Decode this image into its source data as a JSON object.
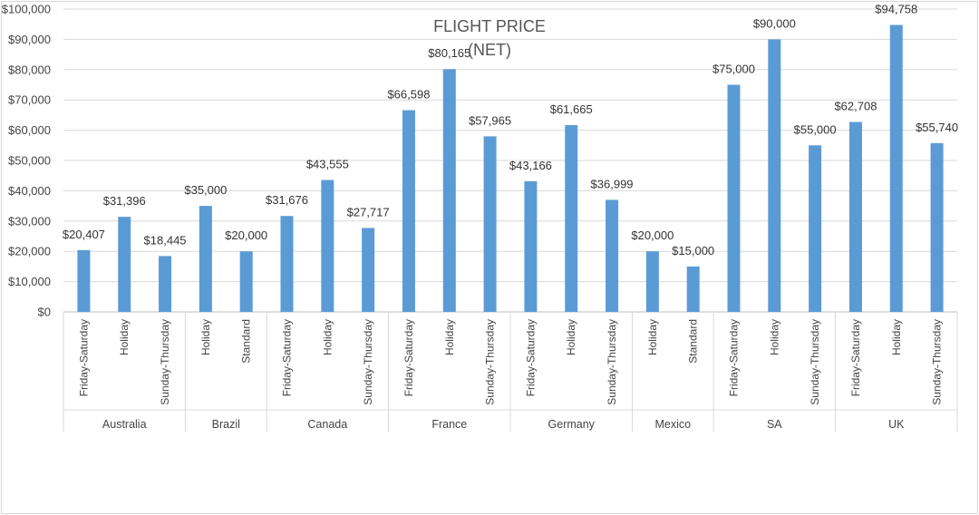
{
  "chart_data": {
    "type": "bar",
    "title_line1": "FLIGHT PRICE",
    "title_line2": "(NET)",
    "y_tick_labels": [
      "$0",
      "$10,000",
      "$20,000",
      "$30,000",
      "$40,000",
      "$50,000",
      "$60,000",
      "$70,000",
      "$80,000",
      "$90,000",
      "$100,000"
    ],
    "ylim": [
      0,
      100000
    ],
    "grid": true,
    "bar_color": "#5b9bd5",
    "groups": [
      {
        "name": "Australia",
        "bars": [
          {
            "category": "Friday-Saturday",
            "value": 20407,
            "label": "$20,407"
          },
          {
            "category": "Holiday",
            "value": 31396,
            "label": "$31,396"
          },
          {
            "category": "Sunday-Thursday",
            "value": 18445,
            "label": "$18,445"
          }
        ]
      },
      {
        "name": "Brazil",
        "bars": [
          {
            "category": "Holiday",
            "value": 35000,
            "label": "$35,000"
          },
          {
            "category": "Standard",
            "value": 20000,
            "label": "$20,000"
          }
        ]
      },
      {
        "name": "Canada",
        "bars": [
          {
            "category": "Friday-Saturday",
            "value": 31676,
            "label": "$31,676"
          },
          {
            "category": "Holiday",
            "value": 43555,
            "label": "$43,555"
          },
          {
            "category": "Sunday-Thursday",
            "value": 27717,
            "label": "$27,717"
          }
        ]
      },
      {
        "name": "France",
        "bars": [
          {
            "category": "Friday-Saturday",
            "value": 66598,
            "label": "$66,598"
          },
          {
            "category": "Holiday",
            "value": 80165,
            "label": "$80,165"
          },
          {
            "category": "Sunday-Thursday",
            "value": 57965,
            "label": "$57,965"
          }
        ]
      },
      {
        "name": "Germany",
        "bars": [
          {
            "category": "Friday-Saturday",
            "value": 43166,
            "label": "$43,166"
          },
          {
            "category": "Holiday",
            "value": 61665,
            "label": "$61,665"
          },
          {
            "category": "Sunday-Thursday",
            "value": 36999,
            "label": "$36,999"
          }
        ]
      },
      {
        "name": "Mexico",
        "bars": [
          {
            "category": "Holiday",
            "value": 20000,
            "label": "$20,000"
          },
          {
            "category": "Standard",
            "value": 15000,
            "label": "$15,000"
          }
        ]
      },
      {
        "name": "SA",
        "bars": [
          {
            "category": "Friday-Saturday",
            "value": 75000,
            "label": "$75,000"
          },
          {
            "category": "Holiday",
            "value": 90000,
            "label": "$90,000"
          },
          {
            "category": "Sunday-Thursday",
            "value": 55000,
            "label": "$55,000"
          }
        ]
      },
      {
        "name": "UK",
        "bars": [
          {
            "category": "Friday-Saturday",
            "value": 62708,
            "label": "$62,708"
          },
          {
            "category": "Holiday",
            "value": 94758,
            "label": "$94,758"
          },
          {
            "category": "Sunday-Thursday",
            "value": 55740,
            "label": "$55,740"
          }
        ]
      }
    ]
  }
}
